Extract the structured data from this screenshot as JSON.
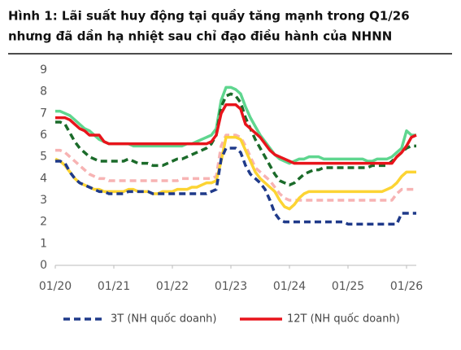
{
  "chart_data": {
    "type": "line",
    "title": [
      "Hình 1: Lãi suất huy động tại quầy tăng mạnh trong Q1/26",
      "nhưng đã dần hạ nhiệt sau chỉ đạo điều hành của NHNN"
    ],
    "x": [
      "01/20",
      "02/20",
      "03/20",
      "04/20",
      "05/20",
      "06/20",
      "07/20",
      "08/20",
      "09/20",
      "10/20",
      "11/20",
      "12/20",
      "01/21",
      "02/21",
      "03/21",
      "04/21",
      "05/21",
      "06/21",
      "07/21",
      "08/21",
      "09/21",
      "10/21",
      "11/21",
      "12/21",
      "01/22",
      "02/22",
      "03/22",
      "04/22",
      "05/22",
      "06/22",
      "07/22",
      "08/22",
      "09/22",
      "10/22",
      "11/22",
      "12/22",
      "01/23",
      "02/23",
      "03/23",
      "04/23",
      "05/23",
      "06/23",
      "07/23",
      "08/23",
      "09/23",
      "10/23",
      "11/23",
      "12/23",
      "01/24",
      "02/24",
      "03/24",
      "04/24",
      "05/24",
      "06/24",
      "07/24",
      "08/24",
      "09/24",
      "10/24",
      "11/24",
      "12/24",
      "01/25",
      "02/25",
      "03/25",
      "04/25",
      "05/25",
      "06/25",
      "07/25",
      "08/25",
      "09/25",
      "10/25",
      "11/25",
      "12/25",
      "01/26",
      "02/26",
      "03/26"
    ],
    "xticks": [
      "01/20",
      "01/21",
      "01/22",
      "01/23",
      "01/24",
      "01/25",
      "01/26"
    ],
    "ylim": [
      0,
      9
    ],
    "yticks": [
      0,
      1,
      2,
      3,
      4,
      5,
      6,
      7,
      8,
      9
    ],
    "series": [
      {
        "color": "#5fd68f",
        "dashed": false,
        "values": [
          7.1,
          7.1,
          7.0,
          6.9,
          6.7,
          6.5,
          6.3,
          6.2,
          6.0,
          5.8,
          5.7,
          5.6,
          5.6,
          5.6,
          5.6,
          5.6,
          5.5,
          5.5,
          5.5,
          5.5,
          5.5,
          5.5,
          5.5,
          5.5,
          5.5,
          5.5,
          5.5,
          5.6,
          5.6,
          5.7,
          5.8,
          5.9,
          6.0,
          6.3,
          7.6,
          8.2,
          8.2,
          8.1,
          7.9,
          7.3,
          6.8,
          6.4,
          6.0,
          5.7,
          5.4,
          5.1,
          4.9,
          4.8,
          4.7,
          4.8,
          4.9,
          4.9,
          5.0,
          5.0,
          5.0,
          4.9,
          4.9,
          4.9,
          4.9,
          4.9,
          4.9,
          4.9,
          4.9,
          4.9,
          4.8,
          4.8,
          4.9,
          4.9,
          4.9,
          5.0,
          5.2,
          5.4,
          6.2,
          6.0,
          6.0
        ]
      },
      {
        "color": "#f7b3b3",
        "dashed": true,
        "values": [
          5.3,
          5.3,
          5.2,
          5.0,
          4.8,
          4.6,
          4.4,
          4.2,
          4.1,
          4.0,
          4.0,
          3.9,
          3.9,
          3.9,
          3.9,
          3.9,
          3.9,
          3.9,
          3.9,
          3.9,
          3.9,
          3.9,
          3.9,
          3.9,
          3.9,
          3.9,
          4.0,
          4.0,
          4.0,
          4.0,
          4.0,
          4.0,
          4.0,
          4.1,
          5.5,
          6.0,
          6.0,
          6.0,
          5.9,
          5.5,
          5.0,
          4.5,
          4.3,
          4.1,
          3.9,
          3.6,
          3.3,
          3.1,
          3.0,
          3.0,
          3.0,
          3.0,
          3.0,
          3.0,
          3.0,
          3.0,
          3.0,
          3.0,
          3.0,
          3.0,
          3.0,
          3.0,
          3.0,
          3.0,
          3.0,
          3.0,
          3.0,
          3.0,
          3.0,
          3.0,
          3.3,
          3.5,
          3.5,
          3.5,
          3.5
        ]
      },
      {
        "color": "#fcd433",
        "dashed": false,
        "values": [
          4.9,
          4.8,
          4.6,
          4.3,
          4.0,
          3.8,
          3.7,
          3.6,
          3.5,
          3.5,
          3.4,
          3.4,
          3.4,
          3.4,
          3.4,
          3.5,
          3.5,
          3.4,
          3.4,
          3.4,
          3.3,
          3.3,
          3.4,
          3.4,
          3.4,
          3.5,
          3.5,
          3.5,
          3.6,
          3.6,
          3.7,
          3.8,
          3.8,
          3.9,
          4.8,
          5.9,
          5.9,
          5.9,
          5.8,
          5.3,
          4.8,
          4.3,
          4.0,
          3.8,
          3.6,
          3.4,
          3.0,
          2.7,
          2.6,
          2.8,
          3.1,
          3.3,
          3.4,
          3.4,
          3.4,
          3.4,
          3.4,
          3.4,
          3.4,
          3.4,
          3.4,
          3.4,
          3.4,
          3.4,
          3.4,
          3.4,
          3.4,
          3.4,
          3.5,
          3.6,
          3.8,
          4.1,
          4.3,
          4.3,
          4.3
        ]
      },
      {
        "color": "#1b6b2a",
        "dashed": true,
        "values": [
          6.6,
          6.6,
          6.5,
          6.1,
          5.7,
          5.4,
          5.2,
          5.0,
          4.9,
          4.8,
          4.8,
          4.8,
          4.8,
          4.8,
          4.8,
          4.9,
          4.8,
          4.7,
          4.7,
          4.7,
          4.6,
          4.6,
          4.6,
          4.7,
          4.8,
          4.9,
          4.9,
          5.0,
          5.1,
          5.2,
          5.3,
          5.4,
          5.6,
          6.0,
          7.3,
          7.8,
          7.9,
          7.8,
          7.5,
          6.8,
          6.3,
          5.8,
          5.4,
          5.0,
          4.6,
          4.2,
          3.9,
          3.8,
          3.7,
          3.8,
          4.0,
          4.2,
          4.3,
          4.4,
          4.4,
          4.5,
          4.5,
          4.5,
          4.5,
          4.5,
          4.5,
          4.5,
          4.5,
          4.5,
          4.5,
          4.6,
          4.6,
          4.6,
          4.6,
          4.8,
          5.0,
          5.2,
          5.4,
          5.5,
          5.5
        ]
      },
      {
        "name": "3T (NH quốc doanh)",
        "color": "#1f3a8a",
        "dashed": true,
        "values": [
          4.8,
          4.8,
          4.7,
          4.3,
          4.0,
          3.8,
          3.7,
          3.6,
          3.5,
          3.4,
          3.4,
          3.3,
          3.3,
          3.3,
          3.3,
          3.4,
          3.4,
          3.4,
          3.4,
          3.4,
          3.3,
          3.3,
          3.3,
          3.3,
          3.3,
          3.3,
          3.3,
          3.3,
          3.3,
          3.3,
          3.3,
          3.3,
          3.4,
          3.5,
          4.9,
          5.4,
          5.4,
          5.4,
          5.2,
          4.6,
          4.2,
          4.0,
          3.8,
          3.5,
          3.0,
          2.4,
          2.1,
          2.0,
          2.0,
          2.0,
          2.0,
          2.0,
          2.0,
          2.0,
          2.0,
          2.0,
          2.0,
          2.0,
          2.0,
          2.0,
          1.9,
          1.9,
          1.9,
          1.9,
          1.9,
          1.9,
          1.9,
          1.9,
          1.9,
          1.9,
          1.9,
          2.4,
          2.4,
          2.4,
          2.4
        ]
      },
      {
        "name": "12T (NH quốc doanh)",
        "color": "#e8141b",
        "dashed": false,
        "values": [
          6.8,
          6.8,
          6.8,
          6.7,
          6.5,
          6.3,
          6.2,
          6.0,
          6.0,
          6.0,
          5.7,
          5.6,
          5.6,
          5.6,
          5.6,
          5.6,
          5.6,
          5.6,
          5.6,
          5.6,
          5.6,
          5.6,
          5.6,
          5.6,
          5.6,
          5.6,
          5.6,
          5.6,
          5.6,
          5.6,
          5.6,
          5.6,
          5.7,
          6.0,
          7.0,
          7.4,
          7.4,
          7.4,
          7.2,
          6.5,
          6.3,
          6.1,
          5.9,
          5.6,
          5.3,
          5.1,
          5.0,
          4.9,
          4.8,
          4.7,
          4.7,
          4.7,
          4.7,
          4.7,
          4.7,
          4.7,
          4.7,
          4.7,
          4.7,
          4.7,
          4.7,
          4.7,
          4.7,
          4.7,
          4.7,
          4.7,
          4.7,
          4.7,
          4.7,
          4.7,
          5.0,
          5.2,
          5.5,
          5.9,
          6.0
        ]
      }
    ]
  }
}
